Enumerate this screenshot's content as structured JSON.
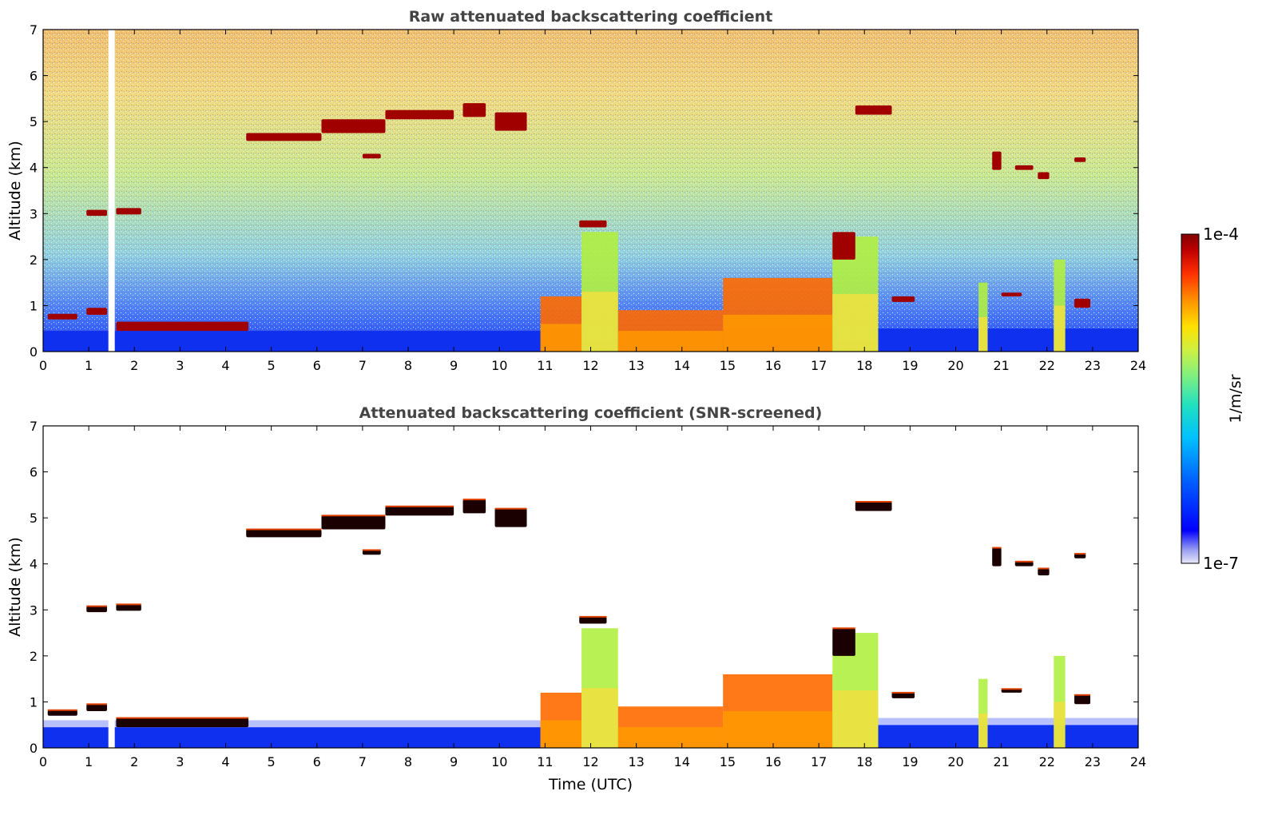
{
  "chart_data": [
    {
      "type": "heatmap",
      "title": "Raw attenuated backscattering coefficient",
      "xlabel": "",
      "ylabel": "Altitude (km)",
      "xlim": [
        0,
        24
      ],
      "ylim": [
        0,
        7
      ],
      "x_ticks": [
        "0",
        "1",
        "2",
        "3",
        "4",
        "5",
        "6",
        "7",
        "8",
        "9",
        "10",
        "11",
        "12",
        "13",
        "14",
        "15",
        "16",
        "17",
        "18",
        "19",
        "20",
        "21",
        "22",
        "23",
        "24"
      ],
      "y_ticks": [
        "0",
        "1",
        "2",
        "3",
        "4",
        "5",
        "6",
        "7"
      ],
      "background_noise": "increasing with altitude (blue near surface to yellow/red aloft)",
      "data_gap_hours": [
        1.43,
        1.57
      ],
      "boundary_layer": [
        {
          "start": 0,
          "end": 10.9,
          "top_km": 0.45
        },
        {
          "start": 18.3,
          "end": 24,
          "top_km": 0.5
        }
      ],
      "cloud_layers": [
        {
          "start": 0.1,
          "end": 0.75,
          "base_km": 0.7,
          "top_km": 0.82
        },
        {
          "start": 0.95,
          "end": 1.4,
          "base_km": 0.8,
          "top_km": 0.95
        },
        {
          "start": 0.95,
          "end": 1.4,
          "base_km": 2.95,
          "top_km": 3.08
        },
        {
          "start": 1.6,
          "end": 2.15,
          "base_km": 2.98,
          "top_km": 3.12
        },
        {
          "start": 1.6,
          "end": 4.5,
          "base_km": 0.45,
          "top_km": 0.65
        },
        {
          "start": 4.45,
          "end": 6.1,
          "base_km": 4.58,
          "top_km": 4.75
        },
        {
          "start": 6.1,
          "end": 7.5,
          "base_km": 4.75,
          "top_km": 5.05
        },
        {
          "start": 7.5,
          "end": 9.0,
          "base_km": 5.05,
          "top_km": 5.25
        },
        {
          "start": 9.2,
          "end": 9.7,
          "base_km": 5.1,
          "top_km": 5.4
        },
        {
          "start": 9.9,
          "end": 10.6,
          "base_km": 4.8,
          "top_km": 5.2
        },
        {
          "start": 7.0,
          "end": 7.4,
          "base_km": 4.2,
          "top_km": 4.3
        },
        {
          "start": 11.75,
          "end": 12.35,
          "base_km": 2.7,
          "top_km": 2.85
        },
        {
          "start": 17.8,
          "end": 18.6,
          "base_km": 5.15,
          "top_km": 5.35
        },
        {
          "start": 20.8,
          "end": 21.0,
          "base_km": 3.95,
          "top_km": 4.35
        },
        {
          "start": 21.3,
          "end": 21.7,
          "base_km": 3.95,
          "top_km": 4.05
        },
        {
          "start": 21.8,
          "end": 22.05,
          "base_km": 3.75,
          "top_km": 3.9
        },
        {
          "start": 22.6,
          "end": 22.85,
          "base_km": 4.12,
          "top_km": 4.22
        },
        {
          "start": 18.6,
          "end": 19.1,
          "base_km": 1.08,
          "top_km": 1.2
        },
        {
          "start": 21.0,
          "end": 21.45,
          "base_km": 1.2,
          "top_km": 1.28
        },
        {
          "start": 22.6,
          "end": 22.95,
          "base_km": 0.95,
          "top_km": 1.15
        },
        {
          "start": 17.3,
          "end": 17.8,
          "base_km": 2.0,
          "top_km": 2.6
        }
      ],
      "aerosol_regions": [
        {
          "start": 10.9,
          "end": 11.8,
          "base_km": 0,
          "top_km": 1.2,
          "level": "high"
        },
        {
          "start": 11.8,
          "end": 12.6,
          "base_km": 0,
          "top_km": 2.6,
          "level": "medium"
        },
        {
          "start": 12.6,
          "end": 14.9,
          "base_km": 0,
          "top_km": 0.9,
          "level": "high"
        },
        {
          "start": 14.9,
          "end": 17.3,
          "base_km": 0,
          "top_km": 1.6,
          "level": "high"
        },
        {
          "start": 17.3,
          "end": 18.3,
          "base_km": 0,
          "top_km": 2.5,
          "level": "medium"
        },
        {
          "start": 20.5,
          "end": 20.7,
          "base_km": 0,
          "top_km": 1.5,
          "level": "medium"
        },
        {
          "start": 22.15,
          "end": 22.4,
          "base_km": 0,
          "top_km": 2.0,
          "level": "medium"
        }
      ]
    },
    {
      "type": "heatmap",
      "title": "Attenuated backscattering coefficient (SNR-screened)",
      "xlabel": "Time (UTC)",
      "ylabel": "Altitude (km)",
      "xlim": [
        0,
        24
      ],
      "ylim": [
        0,
        7
      ],
      "x_ticks": [
        "0",
        "1",
        "2",
        "3",
        "4",
        "5",
        "6",
        "7",
        "8",
        "9",
        "10",
        "11",
        "12",
        "13",
        "14",
        "15",
        "16",
        "17",
        "18",
        "19",
        "20",
        "21",
        "22",
        "23",
        "24"
      ],
      "y_ticks": [
        "0",
        "1",
        "2",
        "3",
        "4",
        "5",
        "6",
        "7"
      ],
      "background_noise": "removed (white)",
      "same_features_as": "Raw attenuated backscattering coefficient"
    }
  ],
  "colorbar": {
    "label": "1/m/sr",
    "max_label": "1e-4",
    "min_label": "1e-7",
    "scale": "log",
    "colors": [
      "#e8e8f8",
      "#9aa0f0",
      "#0000ff",
      "#0060ff",
      "#00c0ff",
      "#20e0c0",
      "#80f080",
      "#d0f040",
      "#ffe000",
      "#ff9000",
      "#ff3000",
      "#c00000",
      "#800000"
    ]
  }
}
